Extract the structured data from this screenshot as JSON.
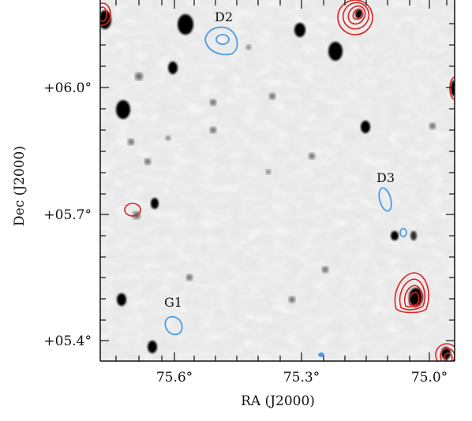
{
  "figure": {
    "x_axis_title": "RA (J2000)",
    "y_axis_title": "Dec (J2000)",
    "x_tick_labels": [
      "75.6°",
      "75.3°",
      "75.0°"
    ],
    "y_tick_labels": [
      "+06.0°",
      "+05.7°",
      "+05.4°"
    ],
    "source_labels": [
      "D2",
      "D3",
      "G1"
    ],
    "colors": {
      "red_contours": "#dd2222",
      "blue_contours": "#4a9be6",
      "background": "#e8e8e8",
      "axes": "#111111"
    },
    "coordinate_ranges": {
      "ra_visible": [
        75.88,
        74.96
      ],
      "dec_visible": [
        5.35,
        6.19
      ]
    }
  }
}
